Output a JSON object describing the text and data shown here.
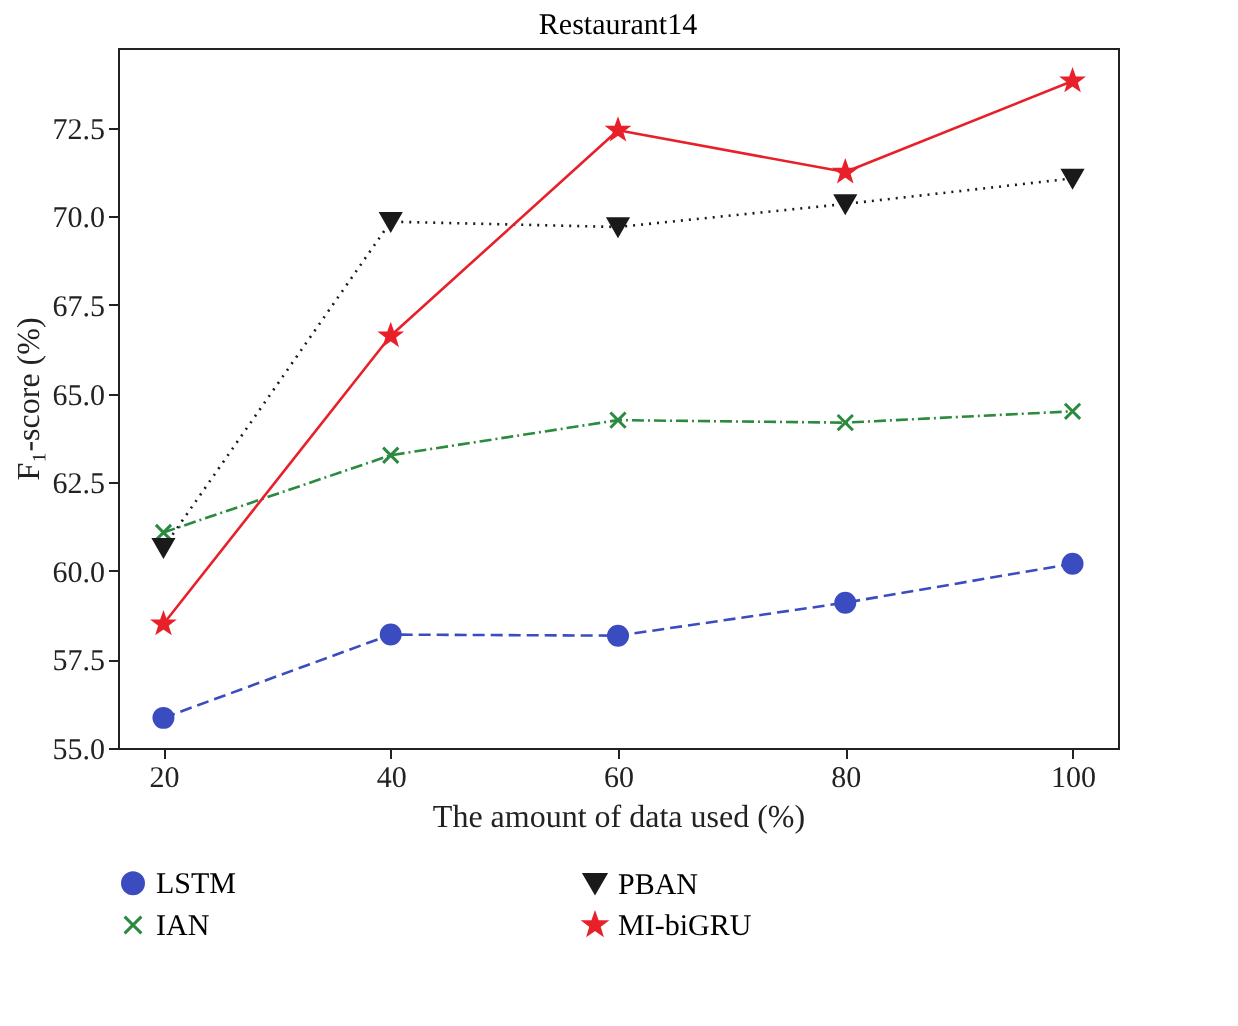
{
  "chart_data": {
    "type": "line",
    "title": "Restaurant14",
    "xlabel": "The amount of data used (%)",
    "ylabel": "F₁-score (%)",
    "x": [
      20,
      40,
      60,
      80,
      100
    ],
    "series": [
      {
        "name": "LSTM",
        "color": "#3b4cc0",
        "marker": "circle",
        "line_style": "dashed",
        "values": [
          55.85,
          58.2,
          58.17,
          59.1,
          60.2
        ]
      },
      {
        "name": "IAN",
        "color": "#2a8a3e",
        "marker": "cross",
        "line_style": "dashdot",
        "values": [
          61.08,
          63.26,
          64.25,
          64.18,
          64.5
        ]
      },
      {
        "name": "PBAN",
        "color": "#1a1a1a",
        "marker": "triangle",
        "line_style": "dotted",
        "values": [
          60.65,
          69.85,
          69.7,
          70.35,
          71.07
        ]
      },
      {
        "name": "MI-biGRU",
        "color": "#e8202a",
        "marker": "star",
        "line_style": "solid",
        "values": [
          58.5,
          66.63,
          72.43,
          71.25,
          73.82
        ]
      }
    ],
    "xlim": [
      16,
      104
    ],
    "xticks": [
      20,
      40,
      60,
      80,
      100
    ],
    "ylim": [
      55,
      74.75
    ],
    "yticks": [
      {
        "value": 55,
        "label": "55.0"
      },
      57.5,
      {
        "value": 60,
        "label": "60.0"
      },
      62.5,
      {
        "value": 65,
        "label": "65.0"
      },
      67.5,
      {
        "value": 70,
        "label": "70.0"
      },
      72.5
    ],
    "grid": false,
    "legend": "bottom"
  }
}
